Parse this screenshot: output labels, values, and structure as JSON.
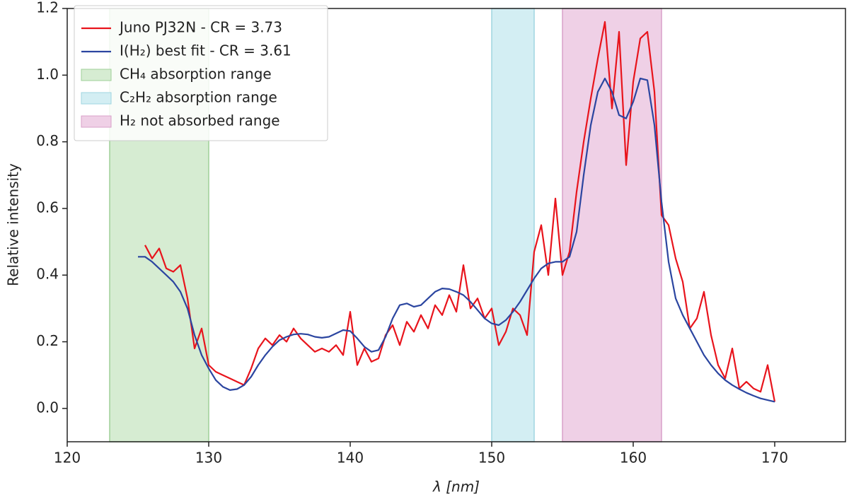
{
  "chart_data": {
    "type": "line",
    "xlabel": "λ [nm]",
    "ylabel": "Relative intensity",
    "xlim": [
      120,
      175
    ],
    "ylim": [
      -0.1,
      1.2
    ],
    "xticks": [
      120,
      130,
      140,
      150,
      160,
      170
    ],
    "yticks": [
      {
        "value": 0,
        "label": "0.0"
      },
      0.2,
      0.4,
      0.6,
      0.8,
      {
        "value": 1,
        "label": "1.0"
      },
      1.2
    ],
    "legend": "upper left",
    "series": [
      {
        "name": "Juno PJ32N - CR =  3.73",
        "color": "#e8141c",
        "x": [
          125.5,
          126,
          126.5,
          127,
          127.5,
          128,
          128.5,
          129,
          129.5,
          130,
          130.5,
          131,
          131.5,
          132,
          132.5,
          133,
          133.5,
          134,
          134.5,
          135,
          135.5,
          136,
          136.5,
          137,
          137.5,
          138,
          138.5,
          139,
          139.5,
          140,
          140.5,
          141,
          141.5,
          142,
          142.5,
          143,
          143.5,
          144,
          144.5,
          145,
          145.5,
          146,
          146.5,
          147,
          147.5,
          148,
          148.5,
          149,
          149.5,
          150,
          150.5,
          151,
          151.5,
          152,
          152.5,
          153,
          153.5,
          154,
          154.5,
          155,
          155.5,
          156,
          156.5,
          157,
          157.5,
          158,
          158.5,
          159,
          159.5,
          160,
          160.5,
          161,
          161.5,
          162,
          162.5,
          163,
          163.5,
          164,
          164.5,
          165,
          165.5,
          166,
          166.5,
          167,
          167.5,
          168,
          168.5,
          169,
          169.5,
          170
        ],
        "values": [
          0.49,
          0.45,
          0.48,
          0.42,
          0.41,
          0.43,
          0.33,
          0.18,
          0.24,
          0.13,
          0.11,
          0.1,
          0.09,
          0.08,
          0.07,
          0.12,
          0.18,
          0.21,
          0.19,
          0.22,
          0.2,
          0.24,
          0.21,
          0.19,
          0.17,
          0.18,
          0.17,
          0.19,
          0.16,
          0.29,
          0.13,
          0.18,
          0.14,
          0.15,
          0.22,
          0.25,
          0.19,
          0.26,
          0.23,
          0.28,
          0.24,
          0.31,
          0.28,
          0.34,
          0.29,
          0.43,
          0.3,
          0.33,
          0.27,
          0.3,
          0.19,
          0.23,
          0.3,
          0.28,
          0.22,
          0.47,
          0.55,
          0.4,
          0.63,
          0.4,
          0.47,
          0.65,
          0.8,
          0.93,
          1.05,
          1.16,
          0.9,
          1.13,
          0.73,
          0.98,
          1.11,
          1.13,
          0.95,
          0.58,
          0.55,
          0.45,
          0.38,
          0.24,
          0.27,
          0.35,
          0.22,
          0.13,
          0.09,
          0.18,
          0.06,
          0.08,
          0.06,
          0.05,
          0.13,
          0.02
        ]
      },
      {
        "name": "I(H₂) best fit - CR =  3.61",
        "color": "#2b45a0",
        "x": [
          125,
          125.5,
          126,
          126.5,
          127,
          127.5,
          128,
          128.5,
          129,
          129.5,
          130,
          130.5,
          131,
          131.5,
          132,
          132.5,
          133,
          133.5,
          134,
          134.5,
          135,
          135.5,
          136,
          136.5,
          137,
          137.5,
          138,
          138.5,
          139,
          139.5,
          140,
          140.5,
          141,
          141.5,
          142,
          142.5,
          143,
          143.5,
          144,
          144.5,
          145,
          145.5,
          146,
          146.5,
          147,
          147.5,
          148,
          148.5,
          149,
          149.5,
          150,
          150.5,
          151,
          151.5,
          152,
          152.5,
          153,
          153.5,
          154,
          154.5,
          155,
          155.5,
          156,
          156.5,
          157,
          157.5,
          158,
          158.5,
          159,
          159.5,
          160,
          160.5,
          161,
          161.5,
          162,
          162.5,
          163,
          163.5,
          164,
          164.5,
          165,
          165.5,
          166,
          166.5,
          167,
          167.5,
          168,
          168.5,
          169,
          169.5,
          170
        ],
        "values": [
          0.455,
          0.455,
          0.44,
          0.42,
          0.4,
          0.38,
          0.35,
          0.3,
          0.22,
          0.16,
          0.12,
          0.085,
          0.065,
          0.055,
          0.058,
          0.07,
          0.095,
          0.13,
          0.16,
          0.185,
          0.205,
          0.215,
          0.222,
          0.224,
          0.222,
          0.215,
          0.212,
          0.215,
          0.225,
          0.235,
          0.232,
          0.21,
          0.185,
          0.17,
          0.175,
          0.215,
          0.27,
          0.31,
          0.315,
          0.305,
          0.31,
          0.33,
          0.35,
          0.36,
          0.358,
          0.35,
          0.34,
          0.32,
          0.295,
          0.27,
          0.255,
          0.25,
          0.265,
          0.29,
          0.32,
          0.355,
          0.39,
          0.42,
          0.435,
          0.44,
          0.44,
          0.455,
          0.53,
          0.7,
          0.85,
          0.95,
          0.99,
          0.95,
          0.88,
          0.87,
          0.92,
          0.99,
          0.985,
          0.85,
          0.62,
          0.44,
          0.33,
          0.28,
          0.24,
          0.2,
          0.16,
          0.13,
          0.105,
          0.085,
          0.07,
          0.058,
          0.047,
          0.038,
          0.03,
          0.025,
          0.02
        ]
      }
    ],
    "bands": [
      {
        "name": "CH₄ absorption range",
        "color": "#d6ecd2",
        "edge": "#9fcf98",
        "x": [
          123,
          130
        ]
      },
      {
        "name": "C₂H₂ absorption range",
        "color": "#d3eef3",
        "edge": "#9fd5e0",
        "x": [
          150,
          153
        ]
      },
      {
        "name": "H₂ not absorbed range",
        "color": "#efd0e6",
        "edge": "#d9a0c8",
        "x": [
          155,
          162
        ]
      }
    ]
  }
}
